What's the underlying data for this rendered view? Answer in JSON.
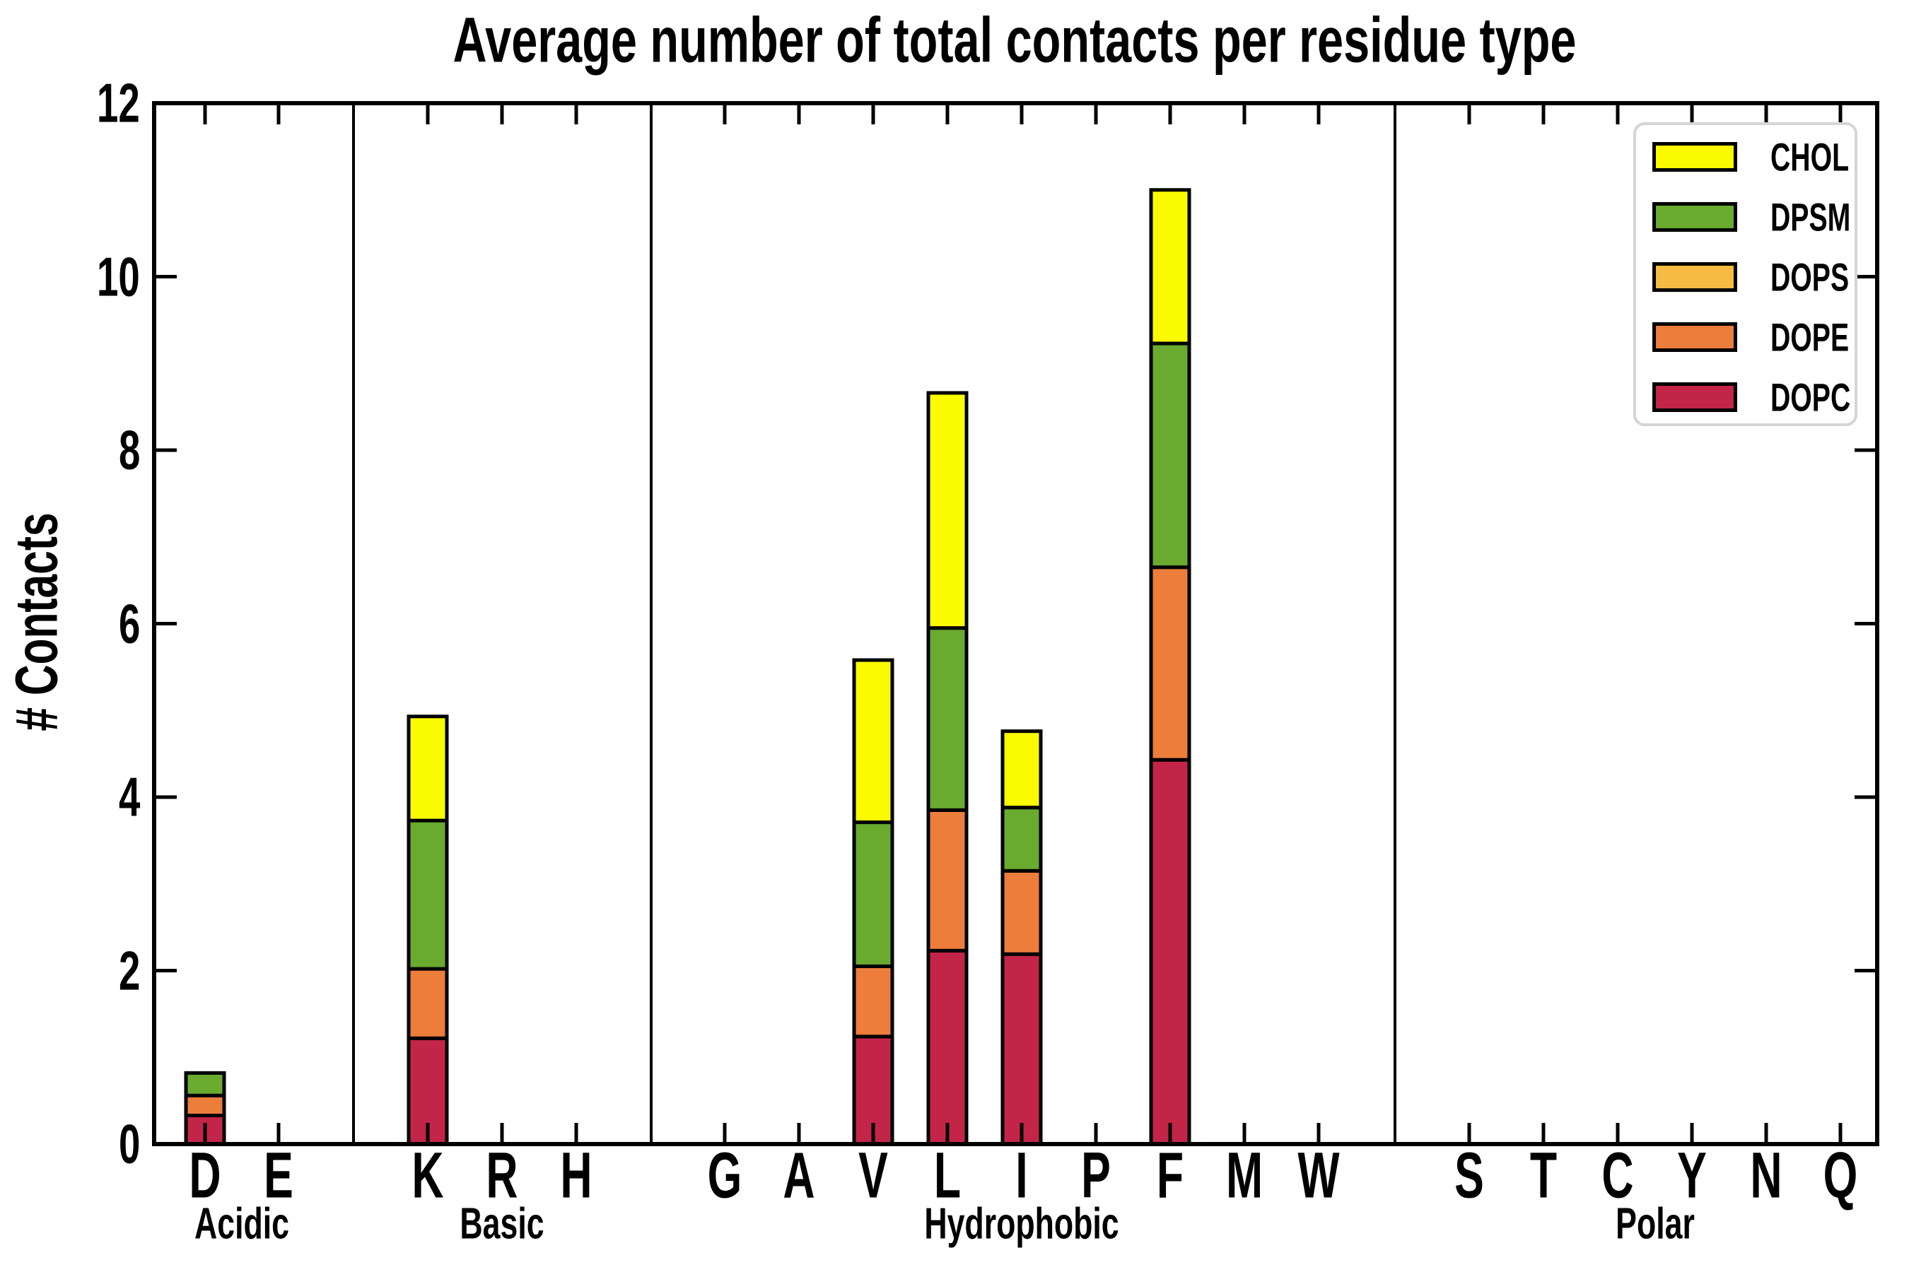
{
  "chart_data": {
    "type": "bar",
    "stacked": true,
    "title": "Average number of total contacts per residue type",
    "ylabel": "# Contacts",
    "xlabel": "",
    "ylim": [
      0,
      12
    ],
    "yticks": [
      0,
      2,
      4,
      6,
      8,
      10,
      12
    ],
    "grid": false,
    "groups": [
      {
        "label": "Acidic",
        "categories": [
          "D",
          "E"
        ]
      },
      {
        "label": "Basic",
        "categories": [
          "K",
          "R",
          "H"
        ]
      },
      {
        "label": "Hydrophobic",
        "categories": [
          "G",
          "A",
          "V",
          "L",
          "I",
          "P",
          "F",
          "M",
          "W"
        ]
      },
      {
        "label": "Polar",
        "categories": [
          "S",
          "T",
          "C",
          "Y",
          "N",
          "Q"
        ]
      }
    ],
    "categories_flat": [
      "D",
      "E",
      "K",
      "R",
      "H",
      "G",
      "A",
      "V",
      "L",
      "I",
      "P",
      "F",
      "M",
      "W",
      "S",
      "T",
      "C",
      "Y",
      "N",
      "Q"
    ],
    "stack_order_bottom_to_top": [
      "DOPC",
      "DOPE",
      "DOPS",
      "DPSM",
      "CHOL"
    ],
    "series": [
      {
        "name": "DOPC",
        "color": "#c32549",
        "values": [
          0.33,
          0,
          1.22,
          0,
          0,
          0,
          0,
          1.24,
          2.23,
          2.19,
          0,
          4.43,
          0,
          0,
          0,
          0,
          0,
          0,
          0,
          0
        ]
      },
      {
        "name": "DOPE",
        "color": "#ed7d3b",
        "values": [
          0.23,
          0,
          0.8,
          0,
          0,
          0,
          0,
          0.81,
          1.62,
          0.96,
          0,
          2.22,
          0,
          0,
          0,
          0,
          0,
          0,
          0,
          0
        ]
      },
      {
        "name": "DOPS",
        "color": "#f6bb43",
        "values": [
          0,
          0,
          0,
          0,
          0,
          0,
          0,
          0,
          0,
          0,
          0,
          0,
          0,
          0,
          0,
          0,
          0,
          0,
          0,
          0
        ]
      },
      {
        "name": "DPSM",
        "color": "#69aa2f",
        "values": [
          0.26,
          0,
          1.71,
          0,
          0,
          0,
          0,
          1.66,
          2.1,
          0.73,
          0,
          2.58,
          0,
          0,
          0,
          0,
          0,
          0,
          0,
          0
        ]
      },
      {
        "name": "CHOL",
        "color": "#fbfb00",
        "values": [
          0,
          0,
          1.2,
          0,
          0,
          0,
          0,
          1.87,
          2.71,
          0.88,
          0,
          1.77,
          0,
          0,
          0,
          0,
          0,
          0,
          0,
          0
        ]
      }
    ],
    "totals_nonzero": {
      "D": 0.82,
      "K": 4.93,
      "V": 5.58,
      "L": 8.66,
      "I": 4.76,
      "F": 11.0
    },
    "legend": {
      "position": "upper right",
      "entries": [
        "CHOL",
        "DPSM",
        "DOPS",
        "DOPE",
        "DOPC"
      ]
    },
    "axis_color": "#000000",
    "background_color": "#ffffff"
  }
}
